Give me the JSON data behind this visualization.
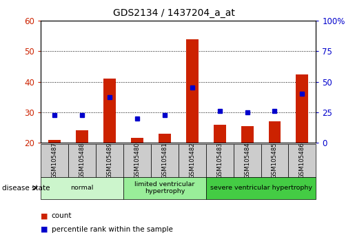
{
  "title": "GDS2134 / 1437204_a_at",
  "samples": [
    "GSM105487",
    "GSM105488",
    "GSM105489",
    "GSM105480",
    "GSM105481",
    "GSM105482",
    "GSM105483",
    "GSM105484",
    "GSM105485",
    "GSM105486"
  ],
  "counts": [
    21,
    24,
    41,
    21.5,
    23,
    54,
    26,
    25.5,
    27,
    42.5
  ],
  "percentiles": [
    29,
    29,
    35,
    28,
    29,
    38,
    30.5,
    30,
    30.5,
    36
  ],
  "ylim_left": [
    20,
    60
  ],
  "ylim_right": [
    0,
    100
  ],
  "yticks_left": [
    20,
    30,
    40,
    50,
    60
  ],
  "yticks_right": [
    0,
    25,
    50,
    75,
    100
  ],
  "groups": [
    {
      "label": "normal",
      "start": 0,
      "end": 3,
      "color": "#ccf5cc"
    },
    {
      "label": "limited ventricular\nhypertrophy",
      "start": 3,
      "end": 6,
      "color": "#99ee99"
    },
    {
      "label": "severe ventricular hypertrophy",
      "start": 6,
      "end": 10,
      "color": "#44cc44"
    }
  ],
  "bar_color": "#cc2200",
  "dot_color": "#0000cc",
  "bar_width": 0.45,
  "tick_bg_color": "#cccccc",
  "grid_color": "black",
  "disease_state_label": "disease state",
  "legend_count_label": "count",
  "legend_percentile_label": "percentile rank within the sample",
  "right_axis_color": "#0000cc",
  "left_axis_color": "#cc2200"
}
